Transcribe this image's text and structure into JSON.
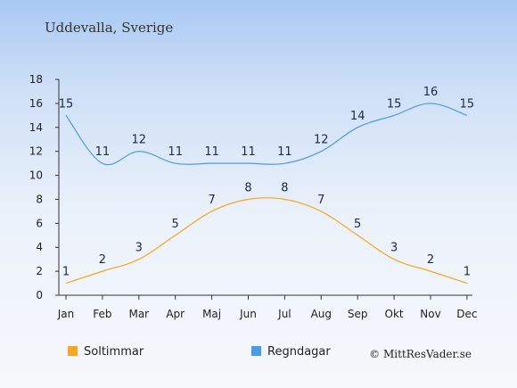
{
  "chart_data": {
    "type": "line",
    "title": "Uddevalla, Sverige",
    "categories": [
      "Jan",
      "Feb",
      "Mar",
      "Apr",
      "Maj",
      "Jun",
      "Jul",
      "Aug",
      "Sep",
      "Okt",
      "Nov",
      "Dec"
    ],
    "ylim": [
      0,
      18
    ],
    "yticks": [
      0,
      2,
      4,
      6,
      8,
      10,
      12,
      14,
      16,
      18
    ],
    "series": [
      {
        "name": "Soltimmar",
        "color": "#f5a623",
        "values": [
          1,
          2,
          3,
          5,
          7,
          8,
          8,
          7,
          5,
          3,
          2,
          1
        ]
      },
      {
        "name": "Regndagar",
        "color": "#4a9de0",
        "values": [
          15,
          11,
          12,
          11,
          11,
          11,
          11,
          12,
          14,
          15,
          16,
          15
        ]
      }
    ],
    "legend_position": "bottom-left",
    "grid": false
  },
  "footer": {
    "copyright": "© MittResVader.se"
  }
}
